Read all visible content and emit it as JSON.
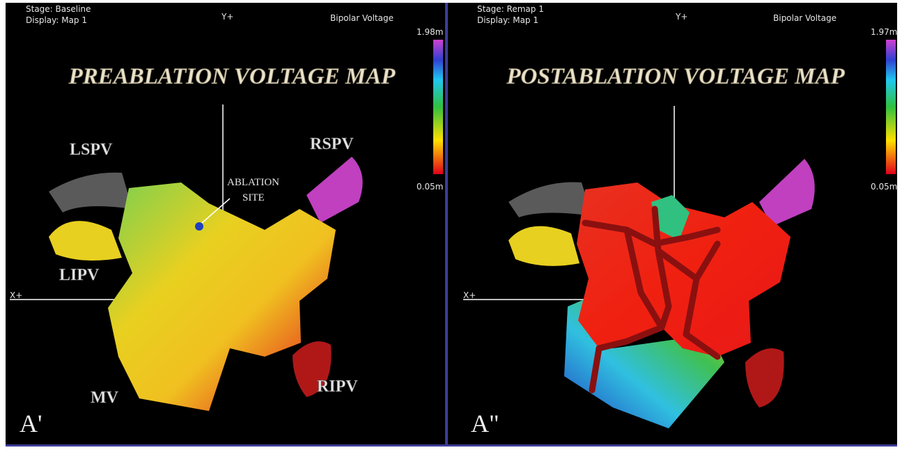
{
  "panels": [
    {
      "stage": "Stage: Baseline",
      "display": "Display: Map 1",
      "axis_y": "Y+",
      "mode": "Bipolar Voltage",
      "scale_max": "1.98m",
      "scale_min": "0.05m",
      "title": "PREABLATION VOLTAGE MAP",
      "axis_x": "X+",
      "panel_label": "A'",
      "labels": [
        "LSPV",
        "RSPV",
        "ABLATION",
        "SITE",
        "LIPV",
        "MV",
        "RIPV"
      ]
    },
    {
      "stage": "Stage: Remap 1",
      "display": "Display: Map 1",
      "axis_y": "Y+",
      "mode": "Bipolar Voltage",
      "scale_max": "1.97m",
      "scale_min": "0.05m",
      "title": "POSTABLATION VOLTAGE MAP",
      "axis_x": "X+",
      "panel_label": "A\""
    }
  ]
}
